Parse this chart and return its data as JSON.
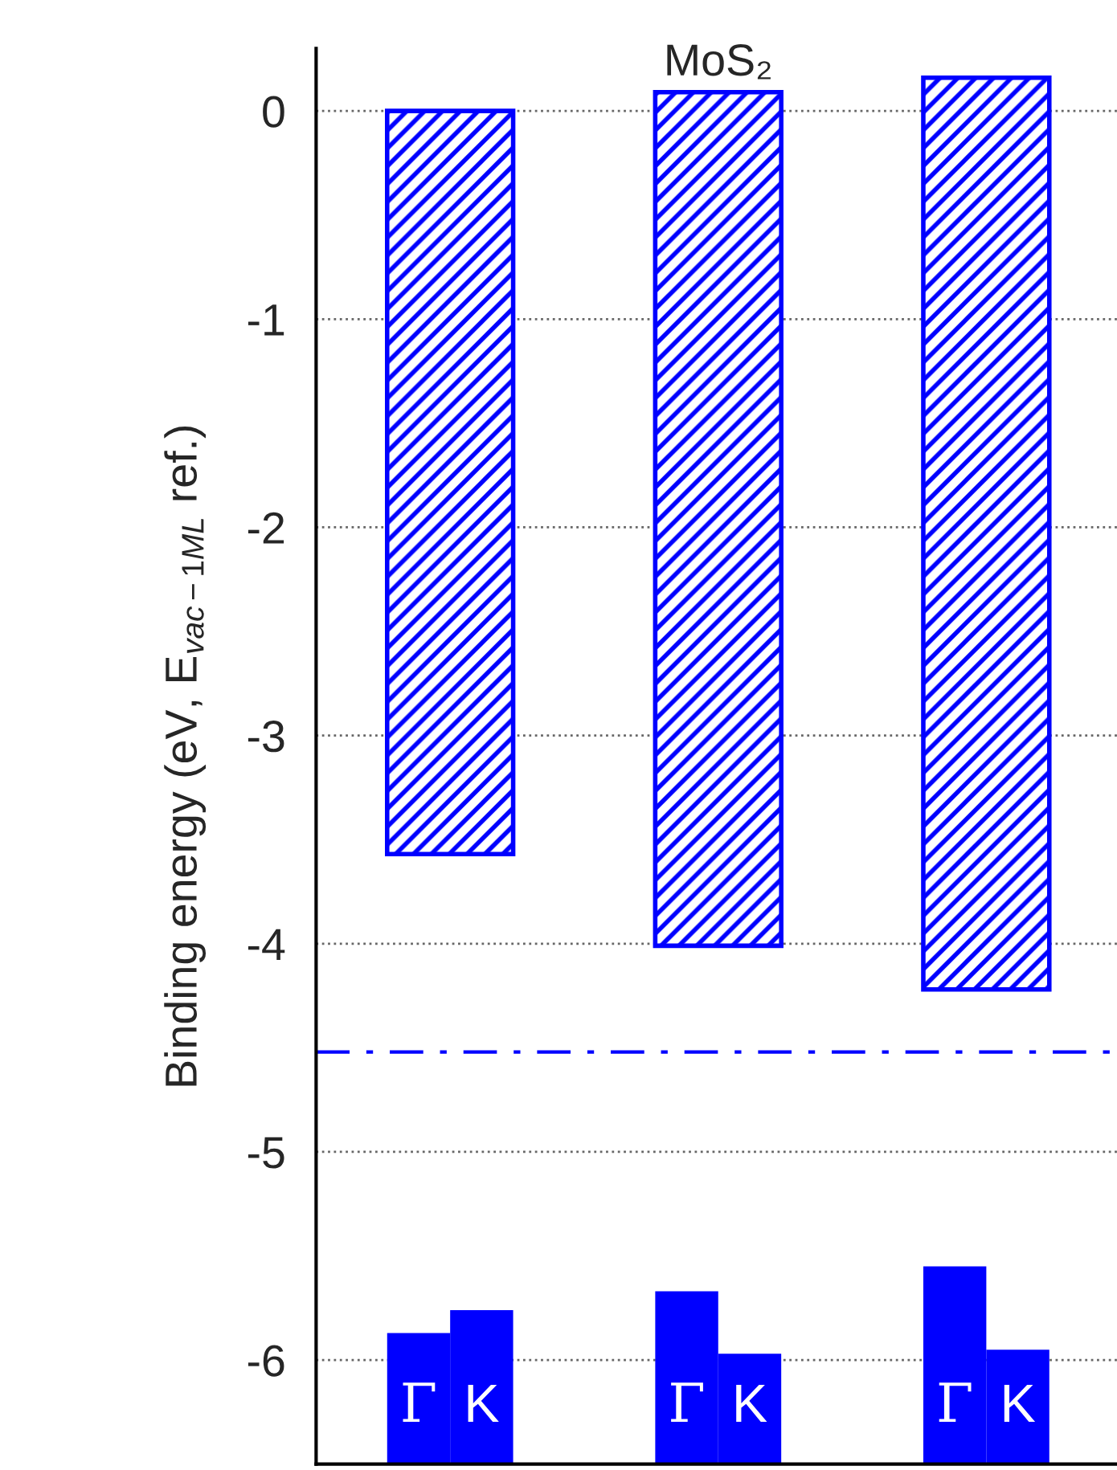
{
  "chart_data": {
    "type": "bar",
    "title": "MoS₂",
    "ylabel": "Binding energy (eV, E$_{vac−1ML}$ ref.)",
    "categories": [
      null,
      null,
      null
    ],
    "series": [
      {
        "color": "#0000ff",
        "values": [
          3.57,
          4.1,
          4.38
        ],
        "base": [
          -3.57,
          -4.01,
          -4.22
        ]
      },
      {
        "name": "Γ",
        "color": "#0000ff",
        "values": [
          0.63,
          0.83,
          0.95
        ],
        "base": [
          -6.5,
          -6.5,
          -6.5
        ]
      },
      {
        "name": "K",
        "color": "#0000ff",
        "values": [
          0.74,
          0.53,
          0.55
        ],
        "base": [
          -6.5,
          -6.5,
          -6.5
        ]
      }
    ],
    "ylim": [
      -6.5,
      0.3
    ],
    "yticks": [
      -6,
      -5,
      -4,
      -3,
      -2,
      -1,
      0
    ],
    "ref_lines": [
      {
        "axis": "y",
        "value": -4.52,
        "color": "#0000ff",
        "line_style": "dashdot"
      }
    ],
    "grid": "y",
    "tick_labels": "y"
  }
}
